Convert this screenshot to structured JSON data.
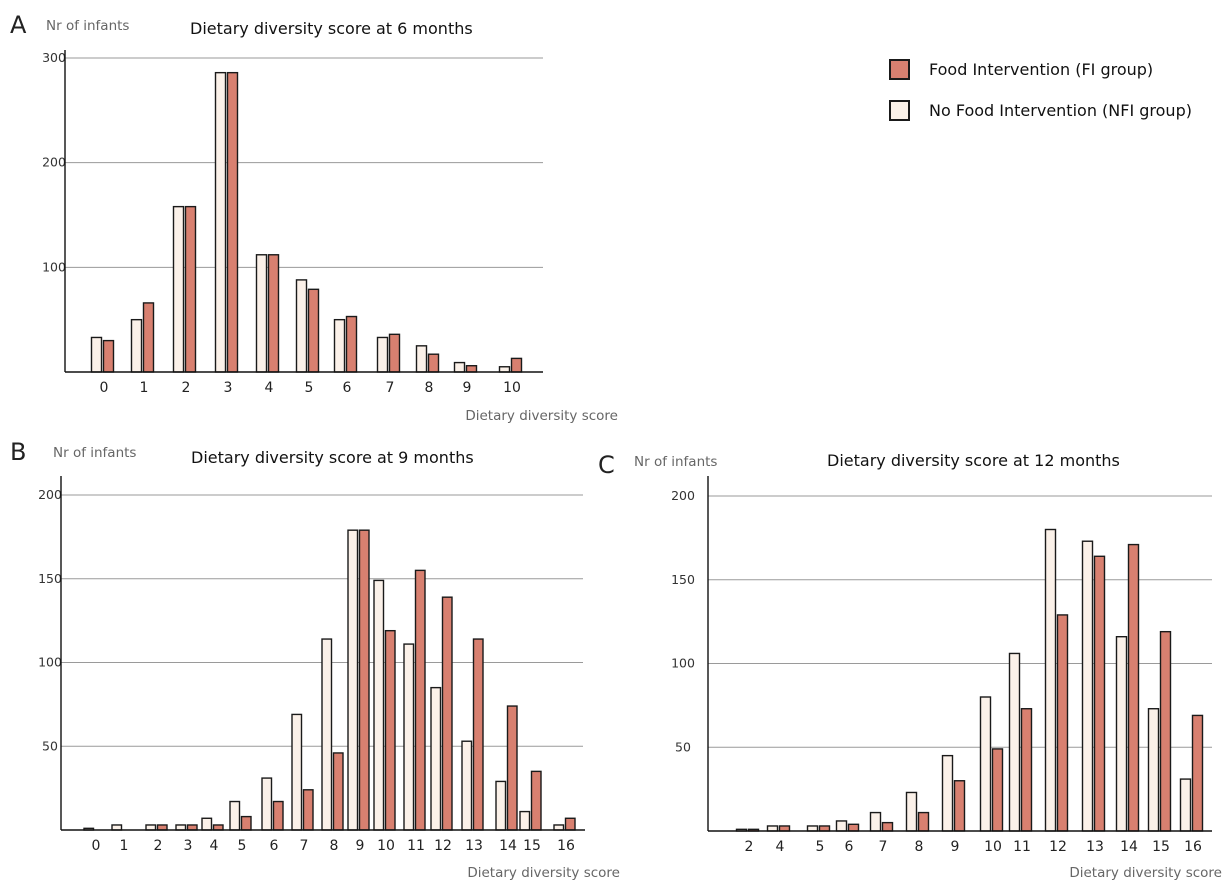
{
  "colors": {
    "fi": "#d88070",
    "nfi": "#fbf1e9",
    "outline": "#1a1a1a",
    "grid": "#9a9a9a"
  },
  "legend": {
    "position": "top-right",
    "items": [
      {
        "series": "FI",
        "label": "Food Intervention (FI group)"
      },
      {
        "series": "NFI",
        "label": "No Food Intervention (NFI group)"
      }
    ]
  },
  "chart_data": [
    {
      "panel": "A",
      "type": "bar",
      "title": "Dietary diversity score at 6 months",
      "ylabel": "Nr of infants",
      "xlabel": "Dietary diversity score",
      "ylim": [
        0,
        300
      ],
      "yticks": [
        100,
        200,
        300
      ],
      "grid": true,
      "categories": [
        "0",
        "1",
        "2",
        "3",
        "4",
        "5",
        "6",
        "7",
        "8",
        "9",
        "10"
      ],
      "series": [
        {
          "name": "No Food Intervention (NFI group)",
          "key": "NFI",
          "values": [
            33,
            50,
            158,
            286,
            112,
            88,
            50,
            33,
            25,
            9,
            5
          ]
        },
        {
          "name": "Food Intervention (FI group)",
          "key": "FI",
          "values": [
            30,
            66,
            158,
            286,
            112,
            79,
            53,
            36,
            17,
            6,
            13
          ]
        }
      ]
    },
    {
      "panel": "B",
      "type": "bar",
      "title": "Dietary diversity score at 9 months",
      "ylabel": "Nr of infants",
      "xlabel": "Dietary diversity score",
      "ylim": [
        0,
        200
      ],
      "yticks": [
        50,
        100,
        150,
        200
      ],
      "grid": true,
      "categories": [
        "0",
        "1",
        "2",
        "3",
        "4",
        "5",
        "6",
        "7",
        "8",
        "9",
        "10",
        "11",
        "12",
        "13",
        "14",
        "15",
        "16"
      ],
      "series": [
        {
          "name": "No Food Intervention (NFI group)",
          "key": "NFI",
          "values": [
            1,
            3,
            3,
            3,
            7,
            17,
            31,
            69,
            114,
            179,
            149,
            111,
            85,
            53,
            29,
            11,
            3
          ]
        },
        {
          "name": "Food Intervention (FI group)",
          "key": "FI",
          "values": [
            0,
            0,
            3,
            3,
            3,
            8,
            17,
            24,
            46,
            179,
            119,
            155,
            139,
            114,
            74,
            35,
            7
          ]
        }
      ]
    },
    {
      "panel": "C",
      "type": "bar",
      "title": "Dietary diversity score at 12 months",
      "ylabel": "Nr of infants",
      "xlabel": "Dietary diversity score",
      "ylim": [
        0,
        200
      ],
      "yticks": [
        50,
        100,
        150,
        200
      ],
      "grid": true,
      "categories": [
        "2",
        "4",
        "5",
        "6",
        "7",
        "8",
        "9",
        "10",
        "11",
        "12",
        "13",
        "14",
        "15",
        "16"
      ],
      "series": [
        {
          "name": "No Food Intervention (NFI group)",
          "key": "NFI",
          "values": [
            1,
            3,
            3,
            6,
            11,
            23,
            45,
            80,
            106,
            180,
            173,
            116,
            73,
            31
          ]
        },
        {
          "name": "Food Intervention (FI group)",
          "key": "FI",
          "values": [
            1,
            3,
            3,
            4,
            5,
            11,
            30,
            49,
            73,
            129,
            164,
            171,
            119,
            69
          ]
        }
      ]
    }
  ]
}
